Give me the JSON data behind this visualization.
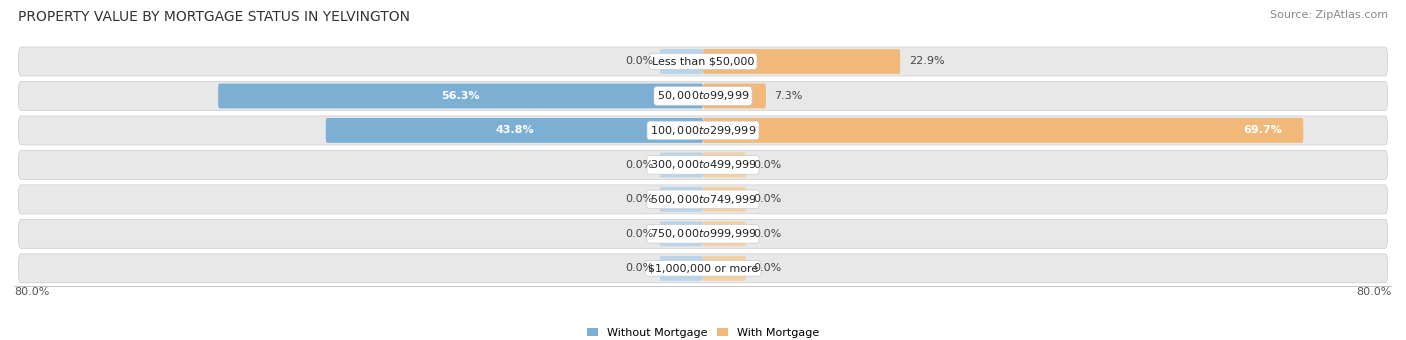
{
  "title": "PROPERTY VALUE BY MORTGAGE STATUS IN YELVINGTON",
  "source": "Source: ZipAtlas.com",
  "categories": [
    "Less than $50,000",
    "$50,000 to $99,999",
    "$100,000 to $299,999",
    "$300,000 to $499,999",
    "$500,000 to $749,999",
    "$750,000 to $999,999",
    "$1,000,000 or more"
  ],
  "without_mortgage": [
    0.0,
    56.3,
    43.8,
    0.0,
    0.0,
    0.0,
    0.0
  ],
  "with_mortgage": [
    22.9,
    7.3,
    69.7,
    0.0,
    0.0,
    0.0,
    0.0
  ],
  "max_val": 80.0,
  "bar_color_without": "#7bafd4",
  "bar_color_with": "#f0b97a",
  "bar_color_without_light": "#b8d4ea",
  "bar_color_with_light": "#f5d0a0",
  "bg_row_color": "#e8e8e8",
  "bg_row_color_alt": "#f0f0f0",
  "axis_label_left": "80.0%",
  "axis_label_right": "80.0%",
  "legend_without": "Without Mortgage",
  "legend_with": "With Mortgage",
  "title_fontsize": 10,
  "source_fontsize": 8,
  "label_fontsize": 8,
  "category_fontsize": 8,
  "zero_bar_width": 5.0
}
